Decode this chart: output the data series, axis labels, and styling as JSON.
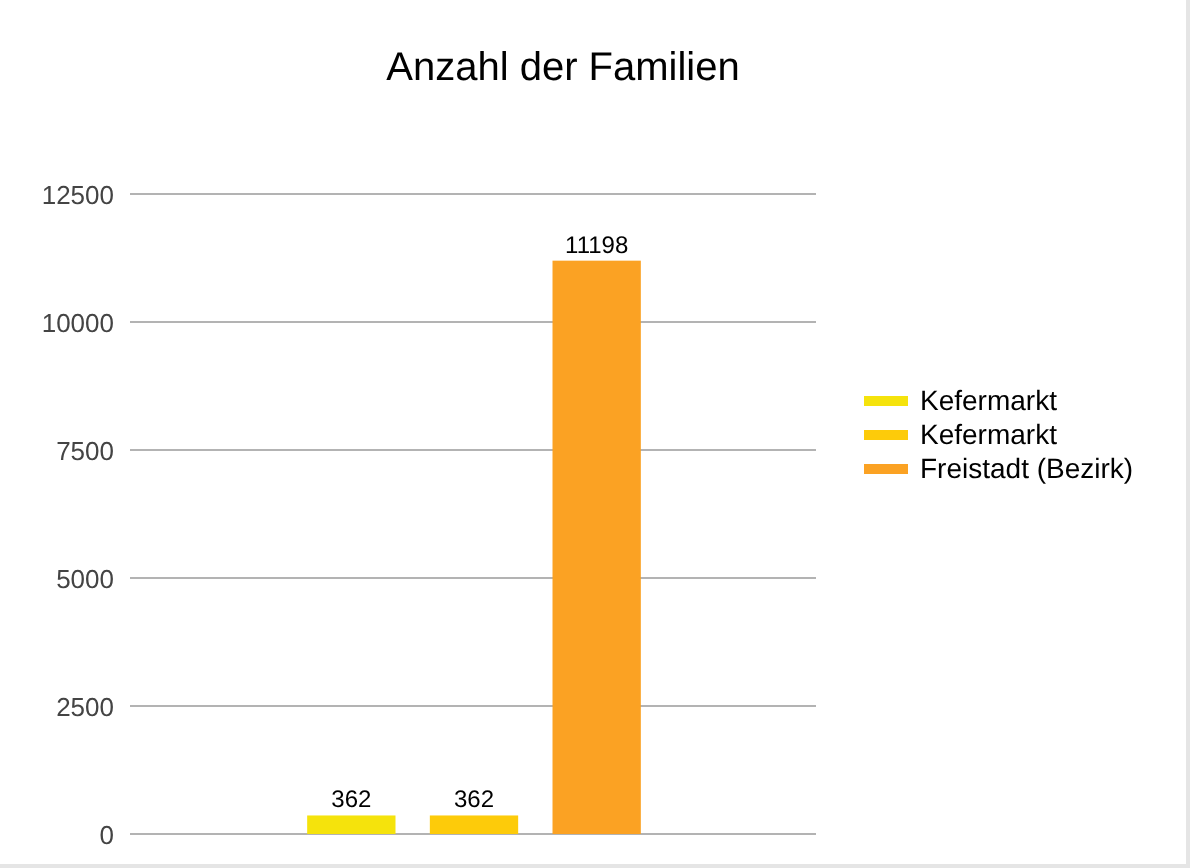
{
  "chart_data": {
    "type": "bar",
    "title": "Anzahl der Familien",
    "categories": [
      null
    ],
    "series": [
      {
        "name": "Kefermarkt",
        "color": "#f5e30c",
        "values": [
          362
        ]
      },
      {
        "name": "Kefermarkt",
        "color": "#fdcb0a",
        "values": [
          362
        ]
      },
      {
        "name": "Freistadt (Bezirk)",
        "color": "#fba223",
        "values": [
          11198
        ]
      }
    ],
    "ylim": [
      0,
      12500
    ],
    "yticks": [
      0,
      2500,
      5000,
      7500,
      10000,
      12500
    ],
    "grid": "y",
    "legend": "right",
    "data_labels": true
  }
}
